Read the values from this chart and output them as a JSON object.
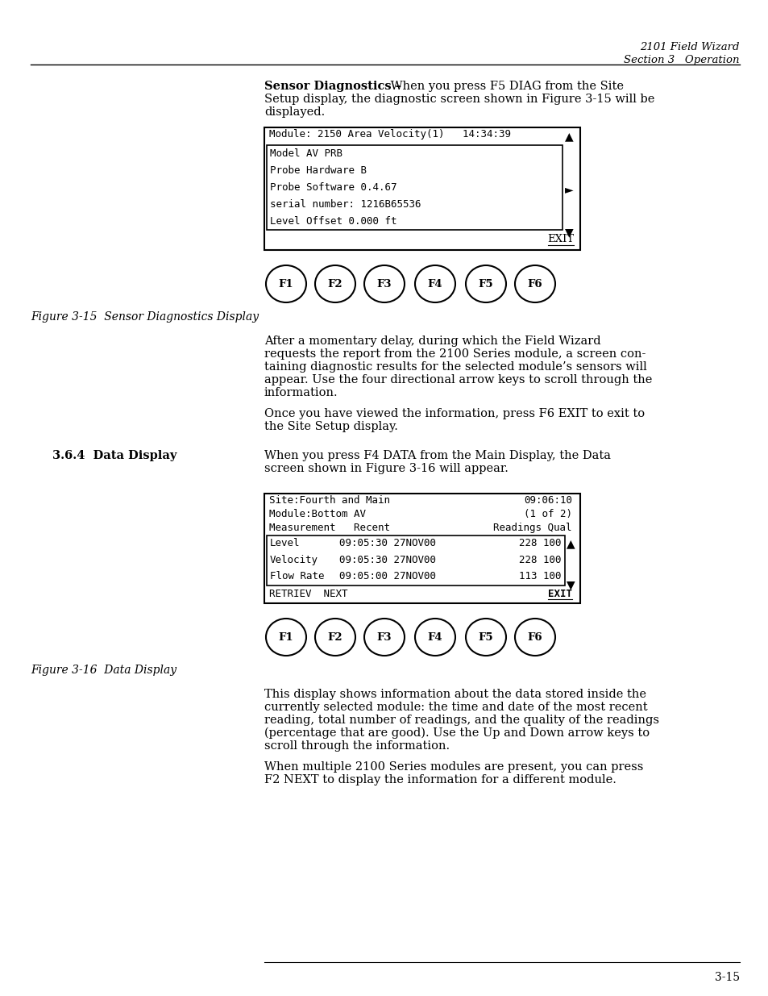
{
  "page_header_right_line1": "2101 Field Wizard",
  "page_header_right_line2": "Section 3   Operation",
  "section_bold": "Sensor Diagnostics –",
  "diag_screen_line1": "Module: 2150 Area Velocity(1)   14:34:39",
  "diag_screen_lines": [
    "Model AV PRB",
    "Probe Hardware B",
    "Probe Software 0.4.67",
    "serial number: 1216B65536",
    "Level Offset 0.000 ft"
  ],
  "diag_exit_label": "EXIT",
  "figure1_caption": "Figure 3-15  Sensor Diagnostics Display",
  "buttons": [
    "F1",
    "F2",
    "F3",
    "F4",
    "F5",
    "F6"
  ],
  "p1_lines": [
    "After a momentary delay, during which the Field Wizard",
    "requests the report from the 2100 Series module, a screen con-",
    "taining diagnostic results for the selected module’s sensors will",
    "appear. Use the four directional arrow keys to scroll through the",
    "information."
  ],
  "p2_lines": [
    "Once you have viewed the information, press F6 EXIT to exit to",
    "the Site Setup display."
  ],
  "section364_label": "3.6.4  Data Display",
  "sec364_text_lines": [
    "When you press F4 DATA from the Main Display, the Data",
    "screen shown in Figure 3-16 will appear."
  ],
  "data_screen_header1a": "Site:Fourth and Main",
  "data_screen_header1b": "09:06:10",
  "data_screen_header2a": "Module:Bottom AV",
  "data_screen_header2b": "(1 of 2)",
  "data_screen_header3a": "Measurement   Recent",
  "data_screen_header3b": "Readings Qual",
  "data_screen_rows": [
    [
      "Level",
      "09:05:30 27NOV00",
      "228 100"
    ],
    [
      "Velocity",
      "09:05:30 27NOV00",
      "228 100"
    ],
    [
      "Flow Rate",
      "09:05:00 27NOV00",
      "113 100"
    ]
  ],
  "figure2_caption": "Figure 3-16  Data Display",
  "p3_lines": [
    "This display shows information about the data stored inside the",
    "currently selected module: the time and date of the most recent",
    "reading, total number of readings, and the quality of the readings",
    "(percentage that are good). Use the Up and Down arrow keys to",
    "scroll through the information."
  ],
  "p4_lines": [
    "When multiple 2100 Series modules are present, you can press",
    "F2 NEXT to display the information for a different module."
  ],
  "page_number": "3-15"
}
